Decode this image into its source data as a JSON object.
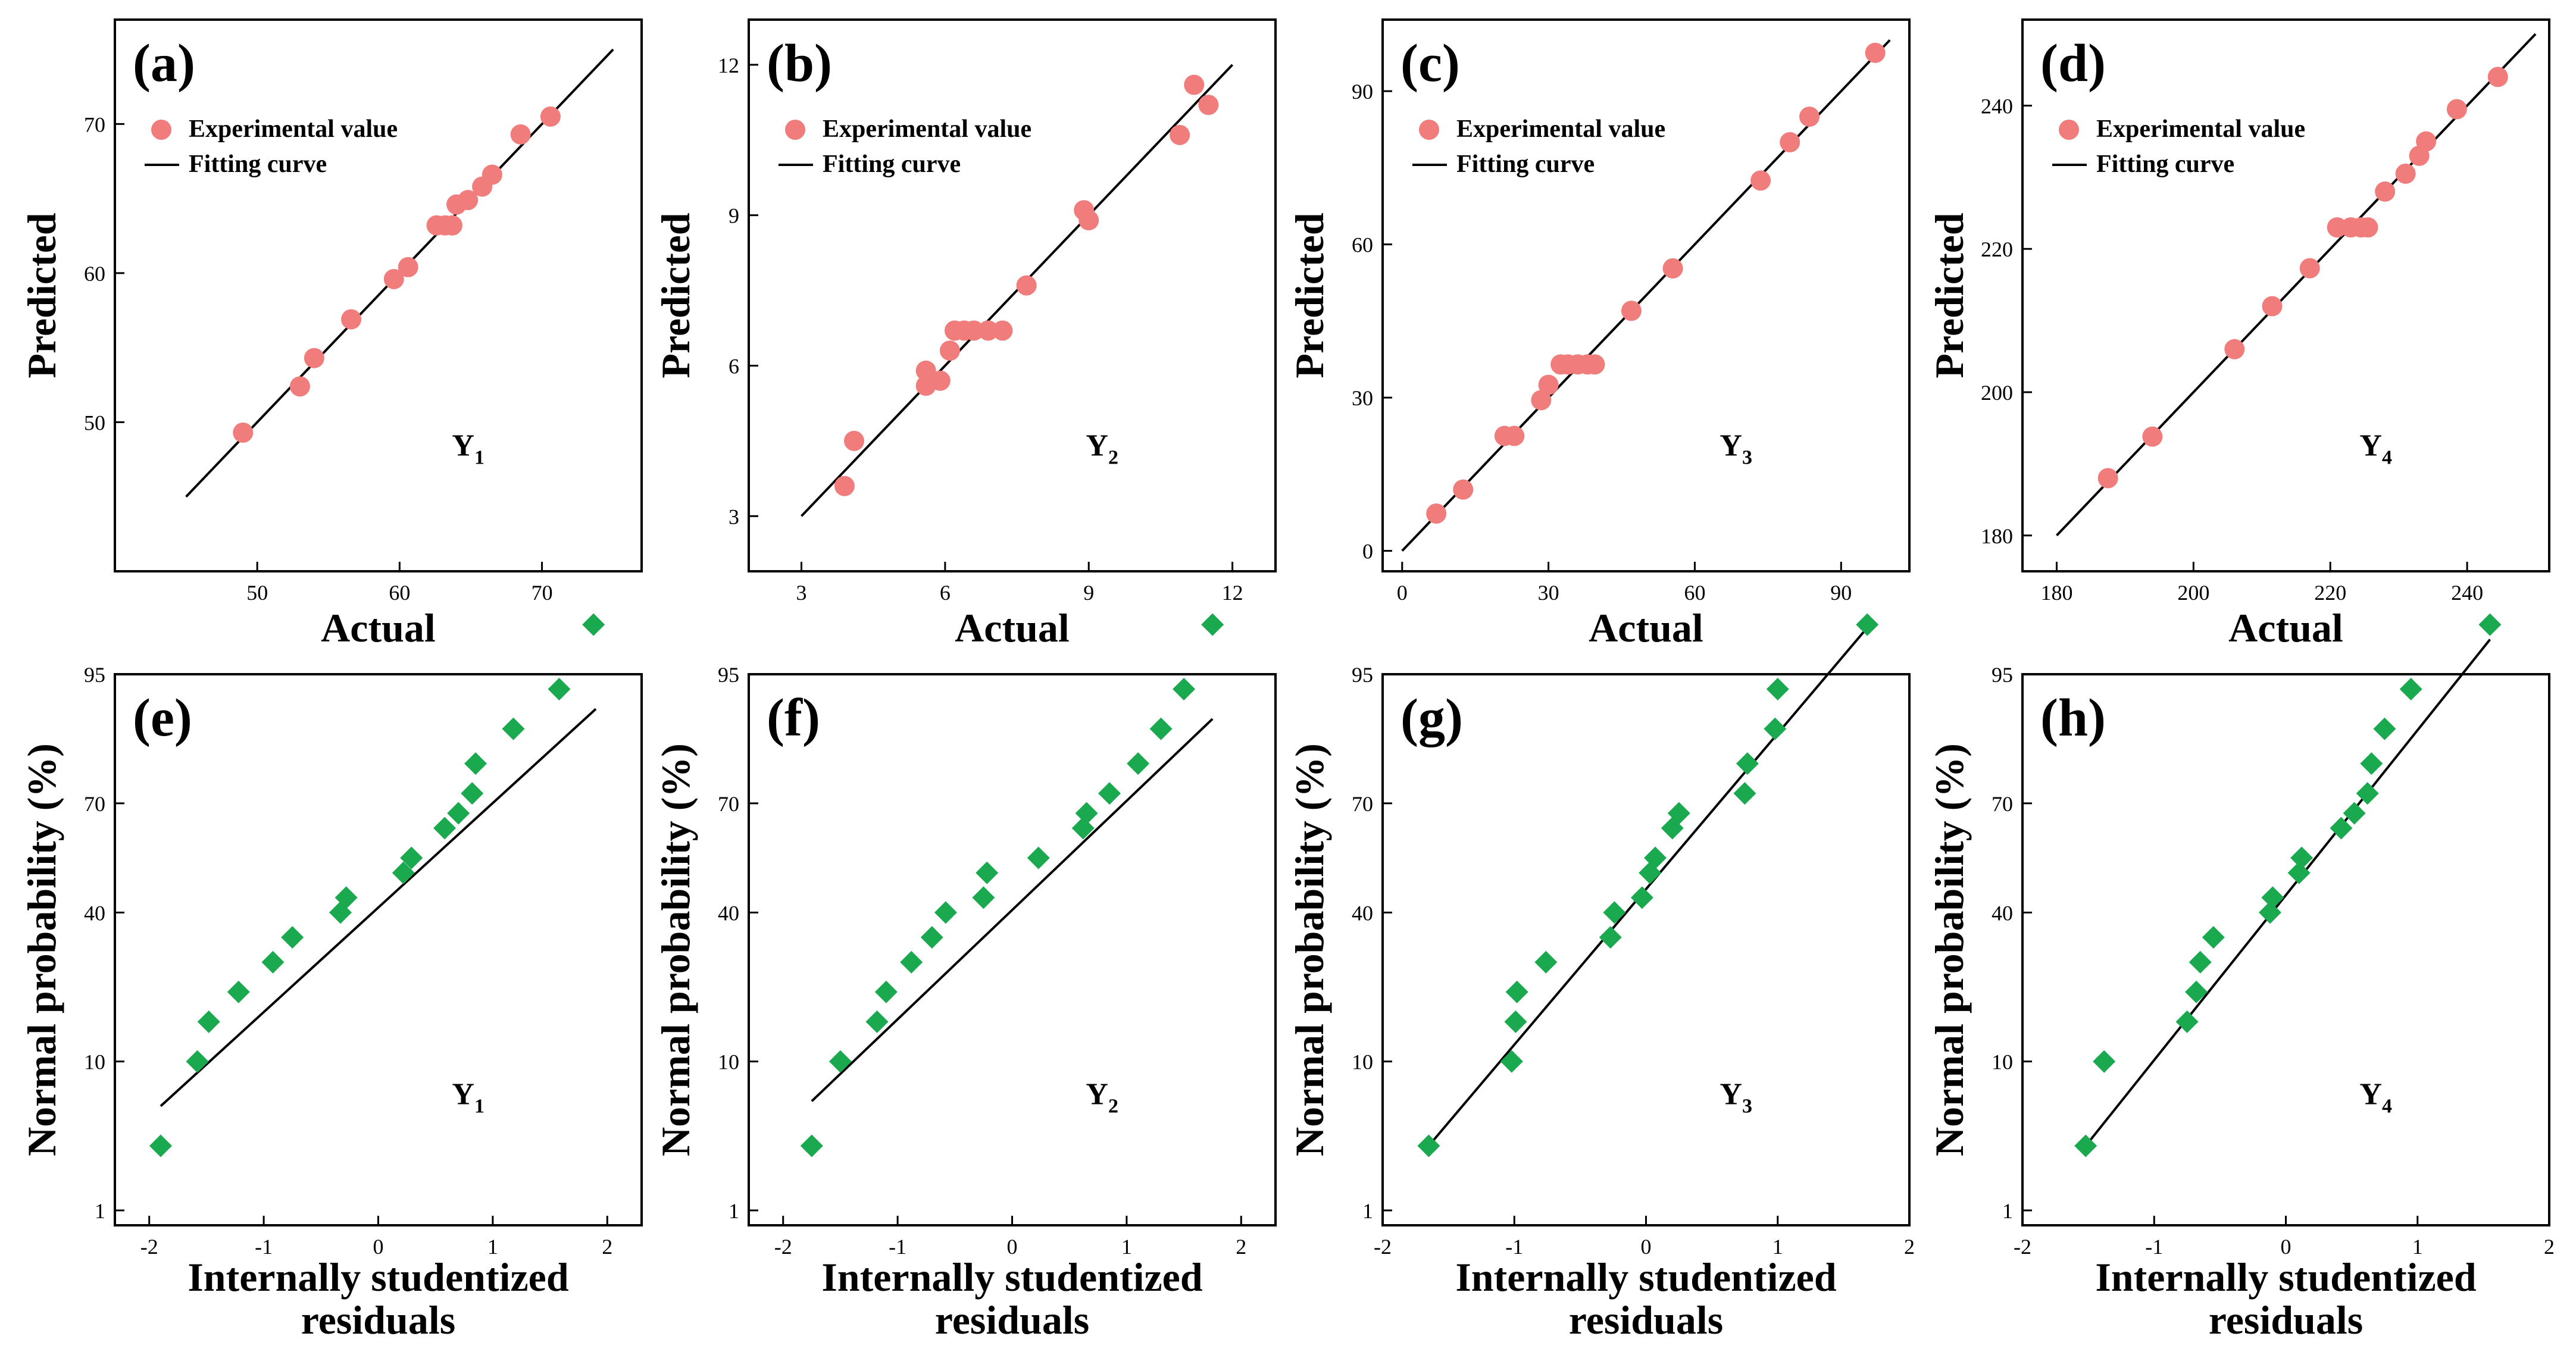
{
  "colors": {
    "top_marker": "#f07c7c",
    "bottom_marker": "#1aa94e",
    "line": "#000000"
  },
  "legend": {
    "marker_label": "Experimental value",
    "line_label": "Fitting curve"
  },
  "chart_data": [
    {
      "id": "a",
      "type": "scatter",
      "panel_label": "(a)",
      "var_main": "Y",
      "var_sub": "1",
      "xlabel": "Actual",
      "ylabel": "Predicted",
      "xlim": [
        40,
        77
      ],
      "ylim": [
        40,
        77
      ],
      "xticks": [
        50,
        60,
        70
      ],
      "yticks": [
        50,
        60,
        70
      ],
      "fit_line": [
        [
          45,
          45
        ],
        [
          75,
          75
        ]
      ],
      "points": [
        [
          49,
          49.3
        ],
        [
          53,
          52.4
        ],
        [
          54,
          54.3
        ],
        [
          56.6,
          56.9
        ],
        [
          59.6,
          59.6
        ],
        [
          60.6,
          60.4
        ],
        [
          62.6,
          63.2
        ],
        [
          63.2,
          63.2
        ],
        [
          63.7,
          63.2
        ],
        [
          64,
          64.6
        ],
        [
          64.8,
          64.9
        ],
        [
          65.8,
          65.8
        ],
        [
          66.5,
          66.6
        ],
        [
          68.5,
          69.3
        ],
        [
          70.6,
          70.5
        ]
      ]
    },
    {
      "id": "b",
      "type": "scatter",
      "panel_label": "(b)",
      "var_main": "Y",
      "var_sub": "2",
      "xlabel": "Actual",
      "ylabel": "Predicted",
      "xlim": [
        1.9,
        12.9
      ],
      "ylim": [
        1.9,
        12.9
      ],
      "xticks": [
        3,
        6,
        9,
        12
      ],
      "yticks": [
        3,
        6,
        9,
        12
      ],
      "fit_line": [
        [
          3,
          3
        ],
        [
          12,
          12
        ]
      ],
      "points": [
        [
          3.9,
          3.6
        ],
        [
          4.1,
          4.5
        ],
        [
          5.6,
          5.6
        ],
        [
          5.6,
          5.9
        ],
        [
          5.9,
          5.7
        ],
        [
          6.1,
          6.3
        ],
        [
          6.2,
          6.7
        ],
        [
          6.4,
          6.7
        ],
        [
          6.6,
          6.7
        ],
        [
          6.9,
          6.7
        ],
        [
          7.2,
          6.7
        ],
        [
          7.7,
          7.6
        ],
        [
          8.9,
          9.1
        ],
        [
          9,
          8.9
        ],
        [
          10.9,
          10.6
        ],
        [
          11.2,
          11.6
        ],
        [
          11.5,
          11.2
        ]
      ]
    },
    {
      "id": "c",
      "type": "scatter",
      "panel_label": "(c)",
      "var_main": "Y",
      "var_sub": "3",
      "xlabel": "Actual",
      "ylabel": "Predicted",
      "xlim": [
        -4,
        104
      ],
      "ylim": [
        -4,
        104
      ],
      "xticks": [
        0,
        30,
        60,
        90
      ],
      "yticks": [
        0,
        30,
        60,
        90
      ],
      "fit_line": [
        [
          0,
          0
        ],
        [
          100,
          100
        ]
      ],
      "points": [
        [
          7,
          7.3
        ],
        [
          12.5,
          12
        ],
        [
          21,
          22.5
        ],
        [
          23,
          22.5
        ],
        [
          28.5,
          29.5
        ],
        [
          30,
          32.5
        ],
        [
          32.5,
          36.5
        ],
        [
          34,
          36.5
        ],
        [
          36,
          36.5
        ],
        [
          38,
          36.5
        ],
        [
          39.5,
          36.5
        ],
        [
          47,
          47
        ],
        [
          55.5,
          55.3
        ],
        [
          73.5,
          72.5
        ],
        [
          79.5,
          80
        ],
        [
          83.5,
          85
        ],
        [
          97,
          97.5
        ]
      ]
    },
    {
      "id": "d",
      "type": "scatter",
      "panel_label": "(d)",
      "var_main": "Y",
      "var_sub": "4",
      "xlabel": "Actual",
      "ylabel": "Predicted",
      "xlim": [
        175,
        252
      ],
      "ylim": [
        175,
        252
      ],
      "xticks": [
        180,
        200,
        220,
        240
      ],
      "yticks": [
        180,
        200,
        220,
        240
      ],
      "fit_line": [
        [
          180,
          180
        ],
        [
          250,
          250
        ]
      ],
      "points": [
        [
          187.5,
          188
        ],
        [
          194,
          193.8
        ],
        [
          206,
          206
        ],
        [
          211.5,
          212
        ],
        [
          217,
          217.3
        ],
        [
          221,
          223
        ],
        [
          223,
          223
        ],
        [
          224.5,
          223
        ],
        [
          225.5,
          223
        ],
        [
          228,
          228
        ],
        [
          231,
          230.5
        ],
        [
          233,
          233
        ],
        [
          234,
          235
        ],
        [
          238.5,
          239.5
        ],
        [
          244.5,
          244
        ]
      ]
    },
    {
      "id": "e",
      "type": "scatter",
      "panel_label": "(e)",
      "var_main": "Y",
      "var_sub": "1",
      "xlabel_lines": [
        "Internally studentized",
        "residuals"
      ],
      "ylabel": "Normal probability (%)",
      "xlim": [
        -2.3,
        2.3
      ],
      "ylim": [
        -3,
        108
      ],
      "xticks": [
        -2,
        -1,
        0,
        1,
        2
      ],
      "yticks": [
        1,
        10,
        40,
        70,
        95
      ],
      "ytick_positions": [
        0,
        30,
        60,
        82,
        108
      ],
      "fit_line": [
        [
          -1.9,
          21
        ],
        [
          1.9,
          101
        ]
      ],
      "points": [
        [
          -1.9,
          13
        ],
        [
          -1.58,
          30
        ],
        [
          -1.48,
          38
        ],
        [
          -1.22,
          44
        ],
        [
          -0.92,
          50
        ],
        [
          -0.75,
          55
        ],
        [
          -0.33,
          60
        ],
        [
          -0.28,
          63
        ],
        [
          0.22,
          68
        ],
        [
          0.29,
          71
        ],
        [
          0.58,
          77
        ],
        [
          0.7,
          80
        ],
        [
          0.82,
          84
        ],
        [
          0.85,
          90
        ],
        [
          1.18,
          97
        ],
        [
          1.58,
          105
        ],
        [
          1.88,
          118
        ]
      ]
    },
    {
      "id": "f",
      "type": "scatter",
      "panel_label": "(f)",
      "var_main": "Y",
      "var_sub": "2",
      "xlabel_lines": [
        "Internally studentized",
        "residuals"
      ],
      "ylabel": "Normal probability (%)",
      "xlim": [
        -2.3,
        2.3
      ],
      "ylim": [
        -3,
        108
      ],
      "xticks": [
        -2,
        -1,
        0,
        1,
        2
      ],
      "yticks": [
        1,
        10,
        40,
        70,
        95
      ],
      "ytick_positions": [
        0,
        30,
        60,
        82,
        108
      ],
      "fit_line": [
        [
          -1.75,
          22
        ],
        [
          1.75,
          99
        ]
      ],
      "points": [
        [
          -1.75,
          13
        ],
        [
          -1.5,
          30
        ],
        [
          -1.18,
          38
        ],
        [
          -1.1,
          44
        ],
        [
          -0.88,
          50
        ],
        [
          -0.7,
          55
        ],
        [
          -0.58,
          60
        ],
        [
          -0.25,
          63
        ],
        [
          -0.22,
          68
        ],
        [
          0.23,
          71
        ],
        [
          0.62,
          77
        ],
        [
          0.65,
          80
        ],
        [
          0.85,
          84
        ],
        [
          1.1,
          90
        ],
        [
          1.3,
          97
        ],
        [
          1.5,
          105
        ],
        [
          1.75,
          118
        ]
      ]
    },
    {
      "id": "g",
      "type": "scatter",
      "panel_label": "(g)",
      "var_main": "Y",
      "var_sub": "3",
      "xlabel_lines": [
        "Internally studentized",
        "residuals"
      ],
      "ylabel": "Normal probability (%)",
      "xlim": [
        -2,
        2
      ],
      "ylim": [
        -3,
        108
      ],
      "xticks": [
        -2,
        -1,
        0,
        1,
        2
      ],
      "yticks": [
        1,
        10,
        40,
        70,
        95
      ],
      "ytick_positions": [
        0,
        30,
        60,
        82,
        108
      ],
      "fit_line": [
        [
          -1.65,
          13
        ],
        [
          1.7,
          118
        ]
      ],
      "points": [
        [
          -1.65,
          13
        ],
        [
          -1.02,
          30
        ],
        [
          -0.99,
          38
        ],
        [
          -0.98,
          44
        ],
        [
          -0.76,
          50
        ],
        [
          -0.27,
          55
        ],
        [
          -0.24,
          60
        ],
        [
          -0.03,
          63
        ],
        [
          0.03,
          68
        ],
        [
          0.07,
          71
        ],
        [
          0.2,
          77
        ],
        [
          0.25,
          80
        ],
        [
          0.75,
          84
        ],
        [
          0.77,
          90
        ],
        [
          0.98,
          97
        ],
        [
          1.0,
          105
        ],
        [
          1.68,
          118
        ]
      ]
    },
    {
      "id": "h",
      "type": "scatter",
      "panel_label": "(h)",
      "var_main": "Y",
      "var_sub": "4",
      "xlabel_lines": [
        "Internally studentized",
        "residuals"
      ],
      "ylabel": "Normal probability (%)",
      "xlim": [
        -2,
        2
      ],
      "ylim": [
        -3,
        108
      ],
      "xticks": [
        -2,
        -1,
        0,
        1,
        2
      ],
      "yticks": [
        1,
        10,
        40,
        70,
        95
      ],
      "ytick_positions": [
        0,
        30,
        60,
        82,
        108
      ],
      "fit_line": [
        [
          -1.55,
          12
        ],
        [
          1.55,
          115
        ]
      ],
      "points": [
        [
          -1.52,
          13
        ],
        [
          -1.38,
          30
        ],
        [
          -0.75,
          38
        ],
        [
          -0.68,
          44
        ],
        [
          -0.65,
          50
        ],
        [
          -0.55,
          55
        ],
        [
          -0.12,
          60
        ],
        [
          -0.1,
          63
        ],
        [
          0.1,
          68
        ],
        [
          0.12,
          71
        ],
        [
          0.42,
          77
        ],
        [
          0.52,
          80
        ],
        [
          0.62,
          84
        ],
        [
          0.65,
          90
        ],
        [
          0.75,
          97
        ],
        [
          0.95,
          105
        ],
        [
          1.55,
          118
        ]
      ]
    }
  ]
}
